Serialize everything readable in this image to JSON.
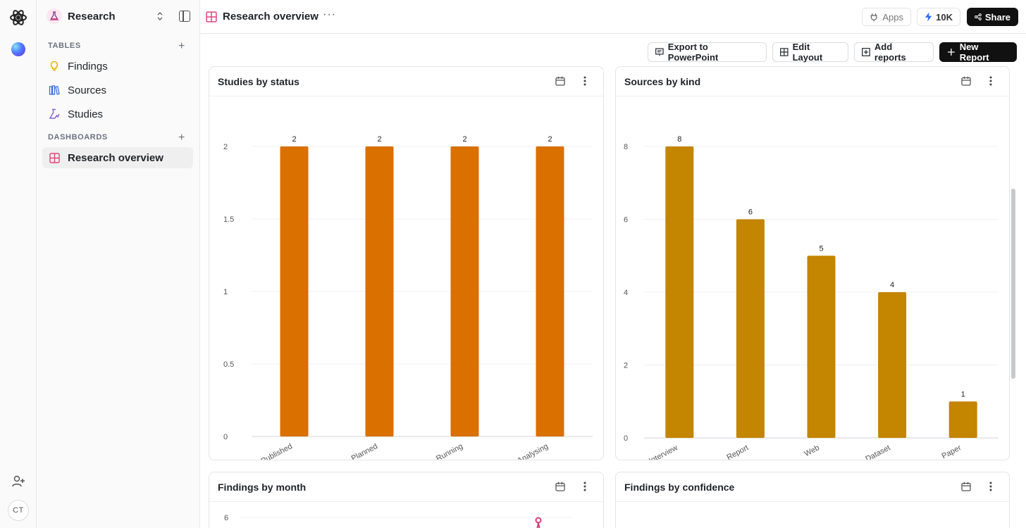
{
  "app": {
    "avatar_initials": "CT"
  },
  "workspace": {
    "name": "Research",
    "icon": "flask-icon"
  },
  "sidebar": {
    "tables_label": "TABLES",
    "tables": [
      {
        "label": "Findings",
        "icon": "lightbulb-icon",
        "color": "#e6b400"
      },
      {
        "label": "Sources",
        "icon": "books-icon",
        "color": "#3b6fd8"
      },
      {
        "label": "Studies",
        "icon": "flask-chart-icon",
        "color": "#8a5cd6"
      }
    ],
    "dashboards_label": "DASHBOARDS",
    "dashboards": [
      {
        "label": "Research overview",
        "icon": "dashboard-grid-icon",
        "color": "#e0457b",
        "active": true
      }
    ]
  },
  "header": {
    "title": "Research overview",
    "apps_label": "Apps",
    "credits_label": "10K",
    "share_label": "Share"
  },
  "toolbar": {
    "export_label": "Export to PowerPoint",
    "edit_layout_label": "Edit Layout",
    "add_reports_label": "Add reports",
    "new_report_label": "New Report"
  },
  "cards": {
    "studies_title": "Studies by status",
    "sources_title": "Sources by kind",
    "findings_month_title": "Findings by month",
    "findings_conf_title": "Findings by confidence"
  },
  "chart_data": [
    {
      "type": "bar",
      "title": "Studies by status",
      "categories": [
        "Published",
        "Planned",
        "Running",
        "Analysing"
      ],
      "values": [
        2,
        2,
        2,
        2
      ],
      "ylim": [
        0,
        2
      ],
      "yticks": [
        "0",
        "0.5",
        "1",
        "1.5",
        "2"
      ],
      "color": "#d97000",
      "grid": true
    },
    {
      "type": "bar",
      "title": "Sources by kind",
      "categories": [
        "Interview",
        "Report",
        "Web",
        "Dataset",
        "Paper"
      ],
      "values": [
        8,
        6,
        5,
        4,
        1
      ],
      "ylim": [
        0,
        8
      ],
      "yticks": [
        "0",
        "2",
        "4",
        "6",
        "8"
      ],
      "color": "#c48500",
      "grid": true
    },
    {
      "type": "line",
      "title": "Findings by month",
      "yticks": [
        "6"
      ],
      "color": "#d43f7a"
    }
  ]
}
